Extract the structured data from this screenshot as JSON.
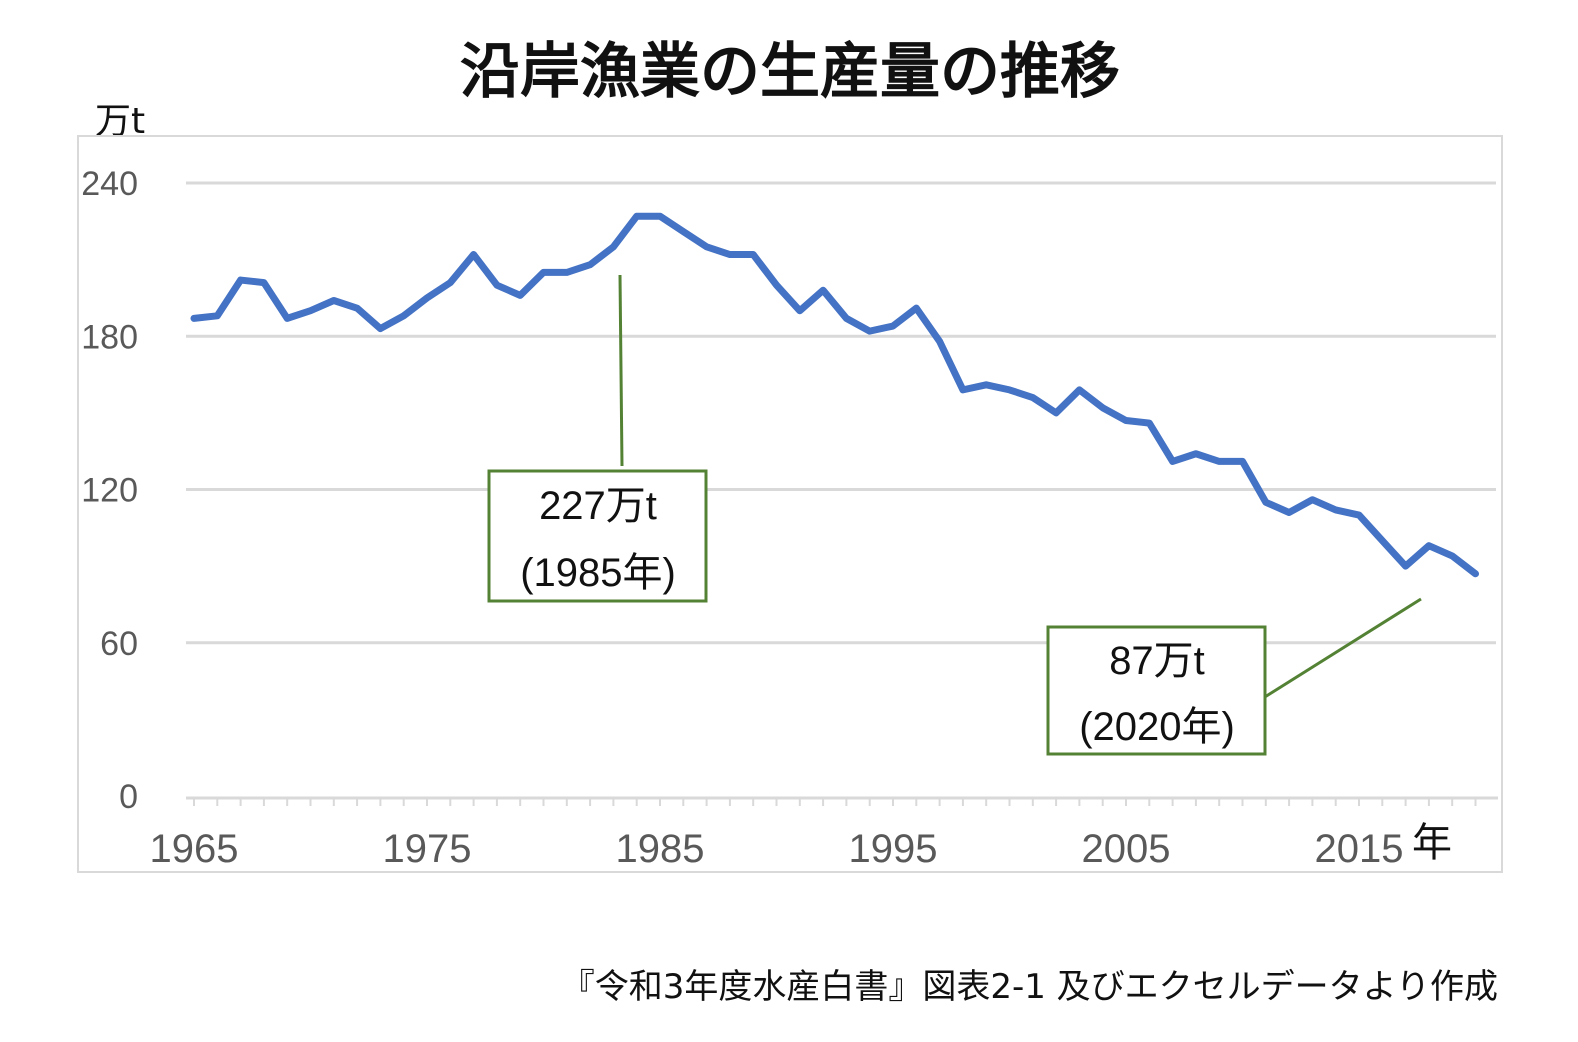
{
  "chart_data": {
    "type": "line",
    "title": "沿岸漁業の生産量の推移",
    "ylabel": "万t",
    "xlabel": "年",
    "ylim": [
      0,
      240
    ],
    "yticks": [
      "0",
      "60",
      "120",
      "180",
      "240"
    ],
    "xticks": [
      "1965",
      "1975",
      "1985",
      "1995",
      "2005",
      "2015"
    ],
    "grid": true,
    "series_color": "#4472c4",
    "annotation_color": "#548235",
    "x": [
      1965,
      1966,
      1967,
      1968,
      1969,
      1970,
      1971,
      1972,
      1973,
      1974,
      1975,
      1976,
      1977,
      1978,
      1979,
      1980,
      1981,
      1982,
      1983,
      1984,
      1985,
      1986,
      1987,
      1988,
      1989,
      1990,
      1991,
      1992,
      1993,
      1994,
      1995,
      1996,
      1997,
      1998,
      1999,
      2000,
      2001,
      2002,
      2003,
      2004,
      2005,
      2006,
      2007,
      2008,
      2009,
      2010,
      2011,
      2012,
      2013,
      2014,
      2015,
      2016,
      2017,
      2018,
      2019,
      2020
    ],
    "series": [
      {
        "values": [
          187,
          188,
          202,
          201,
          187,
          190,
          194,
          191,
          183,
          188,
          195,
          201,
          212,
          200,
          196,
          205,
          205,
          208,
          215,
          227,
          227,
          221,
          215,
          212,
          212,
          200,
          190,
          198,
          187,
          182,
          184,
          191,
          178,
          159,
          161,
          159,
          156,
          150,
          159,
          152,
          147,
          146,
          131,
          134,
          131,
          131,
          115,
          111,
          116,
          112,
          110,
          100,
          90,
          98,
          94,
          87
        ]
      }
    ],
    "annotations": [
      {
        "line1": "227万t",
        "line2": "(1985年)"
      },
      {
        "line1": "87万t",
        "line2": "(2020年)"
      }
    ],
    "source_note": "『令和3年度水産白書』図表2-1 及びエクセルデータより作成"
  }
}
